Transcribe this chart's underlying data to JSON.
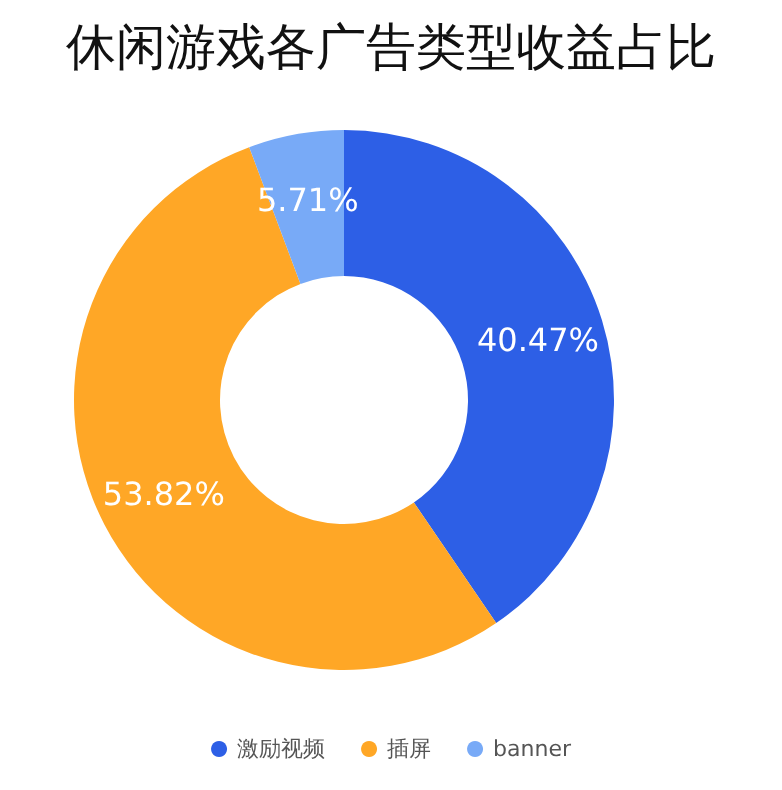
{
  "chart_data": {
    "type": "donut",
    "title": "休闲游戏各广告类型收益占比",
    "categories": [
      "激励视频",
      "插屏",
      "banner"
    ],
    "values": [
      40.47,
      53.82,
      5.71
    ],
    "colors": [
      "#2d5fe6",
      "#ffa726",
      "#78aaf7"
    ],
    "value_labels": [
      "40.47%",
      "53.82%",
      "5.71%"
    ],
    "legend": "bottom"
  }
}
